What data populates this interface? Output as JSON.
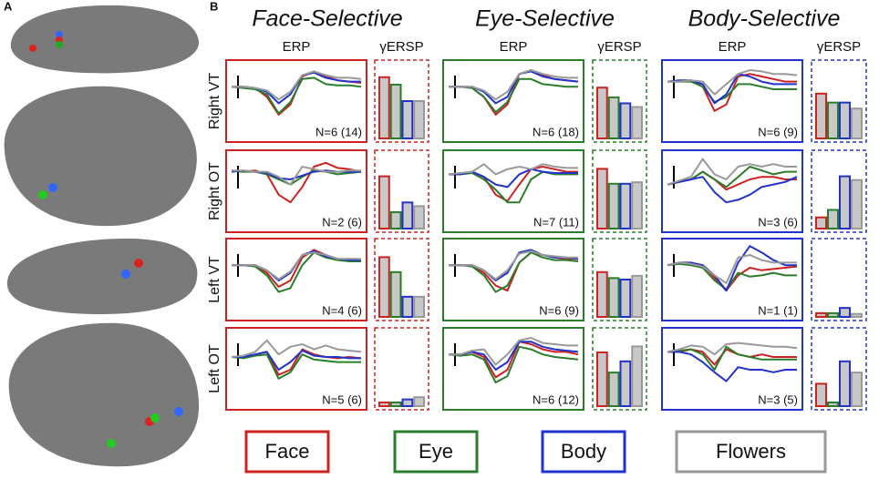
{
  "panel_labels": {
    "a": "A",
    "b": "B"
  },
  "rows": [
    "Right VT",
    "Right OT",
    "Left VT",
    "Left OT"
  ],
  "legend": [
    {
      "name": "Face",
      "color": "#cc2222"
    },
    {
      "name": "Eye",
      "color": "#2a7d2a"
    },
    {
      "name": "Body",
      "color": "#2233cc"
    },
    {
      "name": "Flowers",
      "color": "#999999"
    }
  ],
  "columns": [
    {
      "title": "Face-Selective",
      "erp": "ERP",
      "ersp": "γERSP",
      "color": "#cc2222",
      "cells": [
        {
          "n": "N=6 (14)",
          "bars": [
            0.82,
            0.72,
            0.5,
            0.5
          ],
          "traces": [
            [
              0.1,
              0.1,
              0.05,
              -0.3,
              -1.0,
              -0.6,
              0.5,
              0.7,
              0.5,
              0.35,
              0.3,
              0.25
            ],
            [
              0.1,
              0.05,
              0.0,
              -0.2,
              -0.95,
              -0.5,
              0.4,
              0.45,
              0.2,
              0.15,
              0.15,
              0.1
            ],
            [
              0.1,
              0.1,
              0.05,
              -0.1,
              -0.55,
              -0.2,
              0.55,
              0.65,
              0.45,
              0.35,
              0.3,
              0.3
            ],
            [
              0.1,
              0.1,
              0.05,
              -0.05,
              -0.4,
              -0.1,
              0.55,
              0.7,
              0.55,
              0.45,
              0.45,
              0.4
            ]
          ]
        },
        {
          "n": "N=2 (6)",
          "bars": [
            0.7,
            0.22,
            0.35,
            0.3
          ],
          "traces": [
            [
              0.35,
              0.3,
              0.35,
              0.2,
              -0.6,
              -0.9,
              -0.3,
              0.5,
              0.65,
              0.45,
              0.4,
              0.3
            ],
            [
              0.35,
              0.3,
              0.3,
              0.2,
              0.0,
              -0.2,
              0.1,
              0.35,
              0.3,
              0.2,
              0.25,
              0.3
            ],
            [
              0.3,
              0.35,
              0.3,
              0.25,
              0.05,
              0.0,
              0.15,
              0.3,
              0.35,
              0.3,
              0.3,
              0.3
            ],
            [
              0.35,
              0.35,
              0.3,
              0.3,
              0.1,
              -0.2,
              0.5,
              0.4,
              0.3,
              0.3,
              0.35,
              0.35
            ]
          ]
        },
        {
          "n": "N=4 (6)",
          "bars": [
            0.8,
            0.6,
            0.27,
            0.27
          ],
          "traces": [
            [
              0.1,
              0.1,
              0.1,
              -0.2,
              -0.75,
              -0.5,
              0.4,
              0.7,
              0.5,
              0.35,
              0.3,
              0.3
            ],
            [
              0.1,
              0.1,
              0.05,
              -0.3,
              -0.95,
              -0.8,
              0.1,
              0.6,
              0.4,
              0.3,
              0.25,
              0.25
            ],
            [
              0.1,
              0.1,
              0.1,
              -0.1,
              -0.5,
              -0.2,
              0.5,
              0.65,
              0.45,
              0.35,
              0.3,
              0.3
            ],
            [
              0.1,
              0.1,
              0.1,
              -0.1,
              -0.45,
              -0.15,
              0.5,
              0.6,
              0.5,
              0.35,
              0.35,
              0.35
            ]
          ]
        },
        {
          "n": "N=5 (6)",
          "bars": [
            0.05,
            0.05,
            0.09,
            0.12
          ],
          "traces": [
            [
              0.0,
              0.0,
              0.1,
              0.2,
              -0.7,
              -0.5,
              0.3,
              0.1,
              0.0,
              -0.05,
              0.0,
              -0.05
            ],
            [
              0.0,
              -0.05,
              0.05,
              0.1,
              -0.85,
              -0.6,
              0.1,
              -0.1,
              -0.15,
              -0.2,
              -0.2,
              -0.2
            ],
            [
              0.0,
              0.0,
              0.1,
              0.2,
              -0.5,
              -0.2,
              0.25,
              0.05,
              0.0,
              0.0,
              -0.05,
              -0.05
            ],
            [
              0.0,
              0.05,
              0.2,
              0.65,
              0.1,
              0.4,
              0.5,
              0.3,
              0.45,
              0.3,
              0.25,
              0.2
            ]
          ]
        }
      ]
    },
    {
      "title": "Eye-Selective",
      "erp": "ERP",
      "ersp": "γERSP",
      "color": "#2a7d2a",
      "cells": [
        {
          "n": "N=6 (18)",
          "bars": [
            0.68,
            0.55,
            0.47,
            0.42
          ],
          "traces": [
            [
              0.1,
              0.1,
              0.05,
              -0.3,
              -1.0,
              -0.6,
              0.6,
              0.75,
              0.55,
              0.4,
              0.35,
              0.3
            ],
            [
              0.1,
              0.1,
              0.05,
              -0.3,
              -0.9,
              -0.5,
              0.4,
              0.4,
              0.2,
              0.15,
              0.1,
              0.1
            ],
            [
              0.1,
              0.1,
              0.1,
              -0.1,
              -0.55,
              -0.3,
              0.6,
              0.7,
              0.5,
              0.4,
              0.35,
              0.3
            ],
            [
              0.1,
              0.1,
              0.1,
              -0.05,
              -0.4,
              -0.1,
              0.6,
              0.75,
              0.6,
              0.5,
              0.45,
              0.45
            ]
          ]
        },
        {
          "n": "N=7 (11)",
          "bars": [
            0.8,
            0.6,
            0.6,
            0.62
          ],
          "traces": [
            [
              0.2,
              0.2,
              0.3,
              0.1,
              -0.6,
              -0.85,
              -0.2,
              0.4,
              0.5,
              0.4,
              0.3,
              0.3
            ],
            [
              0.2,
              0.2,
              0.25,
              0.0,
              -0.4,
              -0.9,
              -0.9,
              0.0,
              0.3,
              0.2,
              0.2,
              0.2
            ],
            [
              0.2,
              0.2,
              0.3,
              0.1,
              -0.2,
              -0.3,
              0.2,
              0.4,
              0.3,
              0.25,
              0.25,
              0.25
            ],
            [
              0.2,
              0.25,
              0.3,
              0.6,
              0.2,
              0.4,
              0.5,
              0.4,
              0.6,
              0.5,
              0.45,
              0.45
            ]
          ]
        },
        {
          "n": "N=6 (9)",
          "bars": [
            0.6,
            0.52,
            0.5,
            0.55
          ],
          "traces": [
            [
              0.1,
              0.1,
              0.1,
              -0.2,
              -0.7,
              -0.9,
              0.2,
              0.6,
              0.5,
              0.4,
              0.35,
              0.35
            ],
            [
              0.1,
              0.1,
              0.05,
              -0.3,
              -0.95,
              -0.7,
              0.2,
              0.6,
              0.4,
              0.3,
              0.3,
              0.25
            ],
            [
              0.1,
              0.1,
              0.1,
              -0.1,
              -0.5,
              -0.2,
              0.6,
              0.7,
              0.5,
              0.4,
              0.4,
              0.35
            ],
            [
              0.1,
              0.1,
              0.1,
              -0.1,
              -0.45,
              -0.1,
              0.55,
              0.65,
              0.5,
              0.45,
              0.4,
              0.4
            ]
          ]
        },
        {
          "n": "N=6 (12)",
          "bars": [
            0.72,
            0.45,
            0.6,
            0.8
          ],
          "traces": [
            [
              0.1,
              0.1,
              0.2,
              0.0,
              -0.8,
              -0.5,
              0.6,
              0.5,
              0.3,
              0.2,
              0.2,
              0.1
            ],
            [
              0.1,
              0.05,
              0.1,
              -0.1,
              -1.0,
              -0.75,
              0.4,
              0.3,
              0.1,
              0.0,
              -0.05,
              -0.1
            ],
            [
              0.1,
              0.1,
              0.2,
              0.1,
              -0.5,
              -0.2,
              0.6,
              0.6,
              0.4,
              0.3,
              0.25,
              0.2
            ],
            [
              0.1,
              0.1,
              0.25,
              0.3,
              -0.3,
              0.1,
              0.65,
              0.75,
              0.55,
              0.5,
              0.45,
              0.45
            ]
          ]
        }
      ]
    },
    {
      "title": "Body-Selective",
      "erp": "ERP",
      "ersp": "γERSP",
      "color": "#2233cc",
      "cells": [
        {
          "n": "N=6 (9)",
          "bars": [
            0.6,
            0.48,
            0.48,
            0.4
          ],
          "traces": [
            [
              0.3,
              0.3,
              0.35,
              0.1,
              -0.85,
              -0.6,
              0.5,
              0.6,
              0.5,
              0.4,
              0.3,
              0.3
            ],
            [
              0.3,
              0.3,
              0.3,
              0.1,
              -0.5,
              -0.3,
              0.2,
              0.2,
              0.1,
              0.0,
              0.0,
              0.0
            ],
            [
              0.3,
              0.35,
              0.35,
              0.2,
              -0.55,
              -0.2,
              0.6,
              0.5,
              0.3,
              0.2,
              0.2,
              0.2
            ],
            [
              0.3,
              0.3,
              0.35,
              0.3,
              -0.2,
              0.2,
              0.6,
              0.75,
              0.7,
              0.6,
              0.6,
              0.55
            ]
          ]
        },
        {
          "n": "N=3 (6)",
          "bars": [
            0.15,
            0.25,
            0.7,
            0.65
          ],
          "traces": [
            [
              -0.2,
              -0.1,
              0.0,
              0.3,
              0.0,
              -0.4,
              -0.2,
              0.0,
              0.1,
              0.1,
              0.0,
              0.0
            ],
            [
              -0.2,
              -0.1,
              0.0,
              0.3,
              0.0,
              -0.3,
              0.1,
              0.5,
              0.35,
              0.2,
              0.3,
              0.3
            ],
            [
              -0.2,
              -0.1,
              0.0,
              0.1,
              -0.5,
              -0.9,
              -0.8,
              -0.6,
              -0.3,
              -0.2,
              -0.1,
              0.1
            ],
            [
              -0.2,
              -0.05,
              0.1,
              0.8,
              0.2,
              0.0,
              0.5,
              0.6,
              0.5,
              0.6,
              0.5,
              0.5
            ]
          ]
        },
        {
          "n": "N=1 (1)",
          "bars": [
            0.05,
            0.05,
            0.12,
            0.04
          ],
          "traces": [
            [
              0.1,
              0.2,
              0.15,
              0.1,
              -0.4,
              -0.9,
              -0.3,
              0.0,
              -0.1,
              -0.05,
              0.0,
              0.05
            ],
            [
              0.1,
              0.15,
              0.1,
              0.0,
              -0.5,
              -0.85,
              -0.2,
              -0.35,
              -0.3,
              -0.2,
              -0.3,
              -0.3
            ],
            [
              0.1,
              0.2,
              0.2,
              0.1,
              -0.3,
              -0.9,
              0.2,
              0.85,
              0.6,
              0.3,
              0.1,
              0.1
            ],
            [
              0.1,
              0.2,
              0.15,
              0.05,
              -0.3,
              -0.6,
              0.4,
              0.5,
              0.3,
              0.2,
              0.2,
              0.2
            ]
          ]
        },
        {
          "n": "N=3 (5)",
          "bars": [
            0.3,
            0.05,
            0.6,
            0.45
          ],
          "traces": [
            [
              0.2,
              0.2,
              0.3,
              0.2,
              -0.3,
              0.3,
              0.1,
              0.0,
              0.1,
              0.0,
              0.0,
              0.0
            ],
            [
              0.2,
              0.25,
              0.3,
              0.1,
              -0.5,
              0.4,
              0.1,
              0.0,
              -0.1,
              -0.1,
              -0.1,
              -0.1
            ],
            [
              0.2,
              0.2,
              0.1,
              -0.2,
              -0.6,
              -0.95,
              -0.4,
              -0.5,
              -0.5,
              -0.6,
              -0.5,
              -0.5
            ],
            [
              0.2,
              0.3,
              0.45,
              0.4,
              0.1,
              0.5,
              0.55,
              0.5,
              0.45,
              0.4,
              0.4,
              0.35
            ]
          ]
        }
      ]
    }
  ]
}
